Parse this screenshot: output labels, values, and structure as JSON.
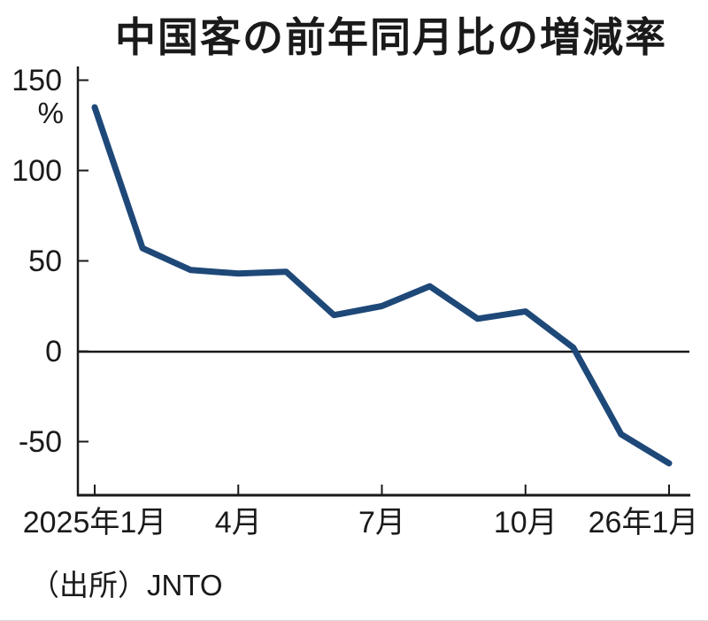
{
  "figure": {
    "title": "中国客の前年同月比の増減率",
    "source": "（出所）JNTO"
  },
  "y_axis": {
    "unit_label": "%",
    "tick_labels": [
      "150",
      "100",
      "50",
      "0",
      "-50"
    ],
    "tick_values": [
      150,
      100,
      50,
      0,
      -50
    ]
  },
  "x_axis": {
    "tick_labels": [
      "2025年1月",
      "4月",
      "7月",
      "10月",
      "26年1月"
    ],
    "tick_positions": [
      0,
      3,
      6,
      9,
      12
    ]
  },
  "colors": {
    "line": "#1e4878",
    "axis": "#1a1a1a",
    "text": "#1a1a1a",
    "background": "#ffffff"
  },
  "chart_data": {
    "type": "line",
    "title": "中国客の前年同月比の増減率",
    "x": [
      "2025年1月",
      "2025年2月",
      "2025年3月",
      "2025年4月",
      "2025年5月",
      "2025年6月",
      "2025年7月",
      "2025年8月",
      "2025年9月",
      "2025年10月",
      "2025年11月",
      "2025年12月",
      "2026年1月"
    ],
    "values": [
      135,
      57,
      45,
      43,
      44,
      20,
      25,
      36,
      18,
      22,
      2,
      -46,
      -62
    ],
    "ylabel": "%",
    "ylim": [
      -75,
      160
    ],
    "xtick_labels": [
      "2025年1月",
      "4月",
      "7月",
      "10月",
      "26年1月"
    ],
    "xtick_month_indices": [
      0,
      3,
      6,
      9,
      12
    ],
    "grid": false,
    "legend": null,
    "zero_line": true,
    "source": "（出所）JNTO"
  }
}
